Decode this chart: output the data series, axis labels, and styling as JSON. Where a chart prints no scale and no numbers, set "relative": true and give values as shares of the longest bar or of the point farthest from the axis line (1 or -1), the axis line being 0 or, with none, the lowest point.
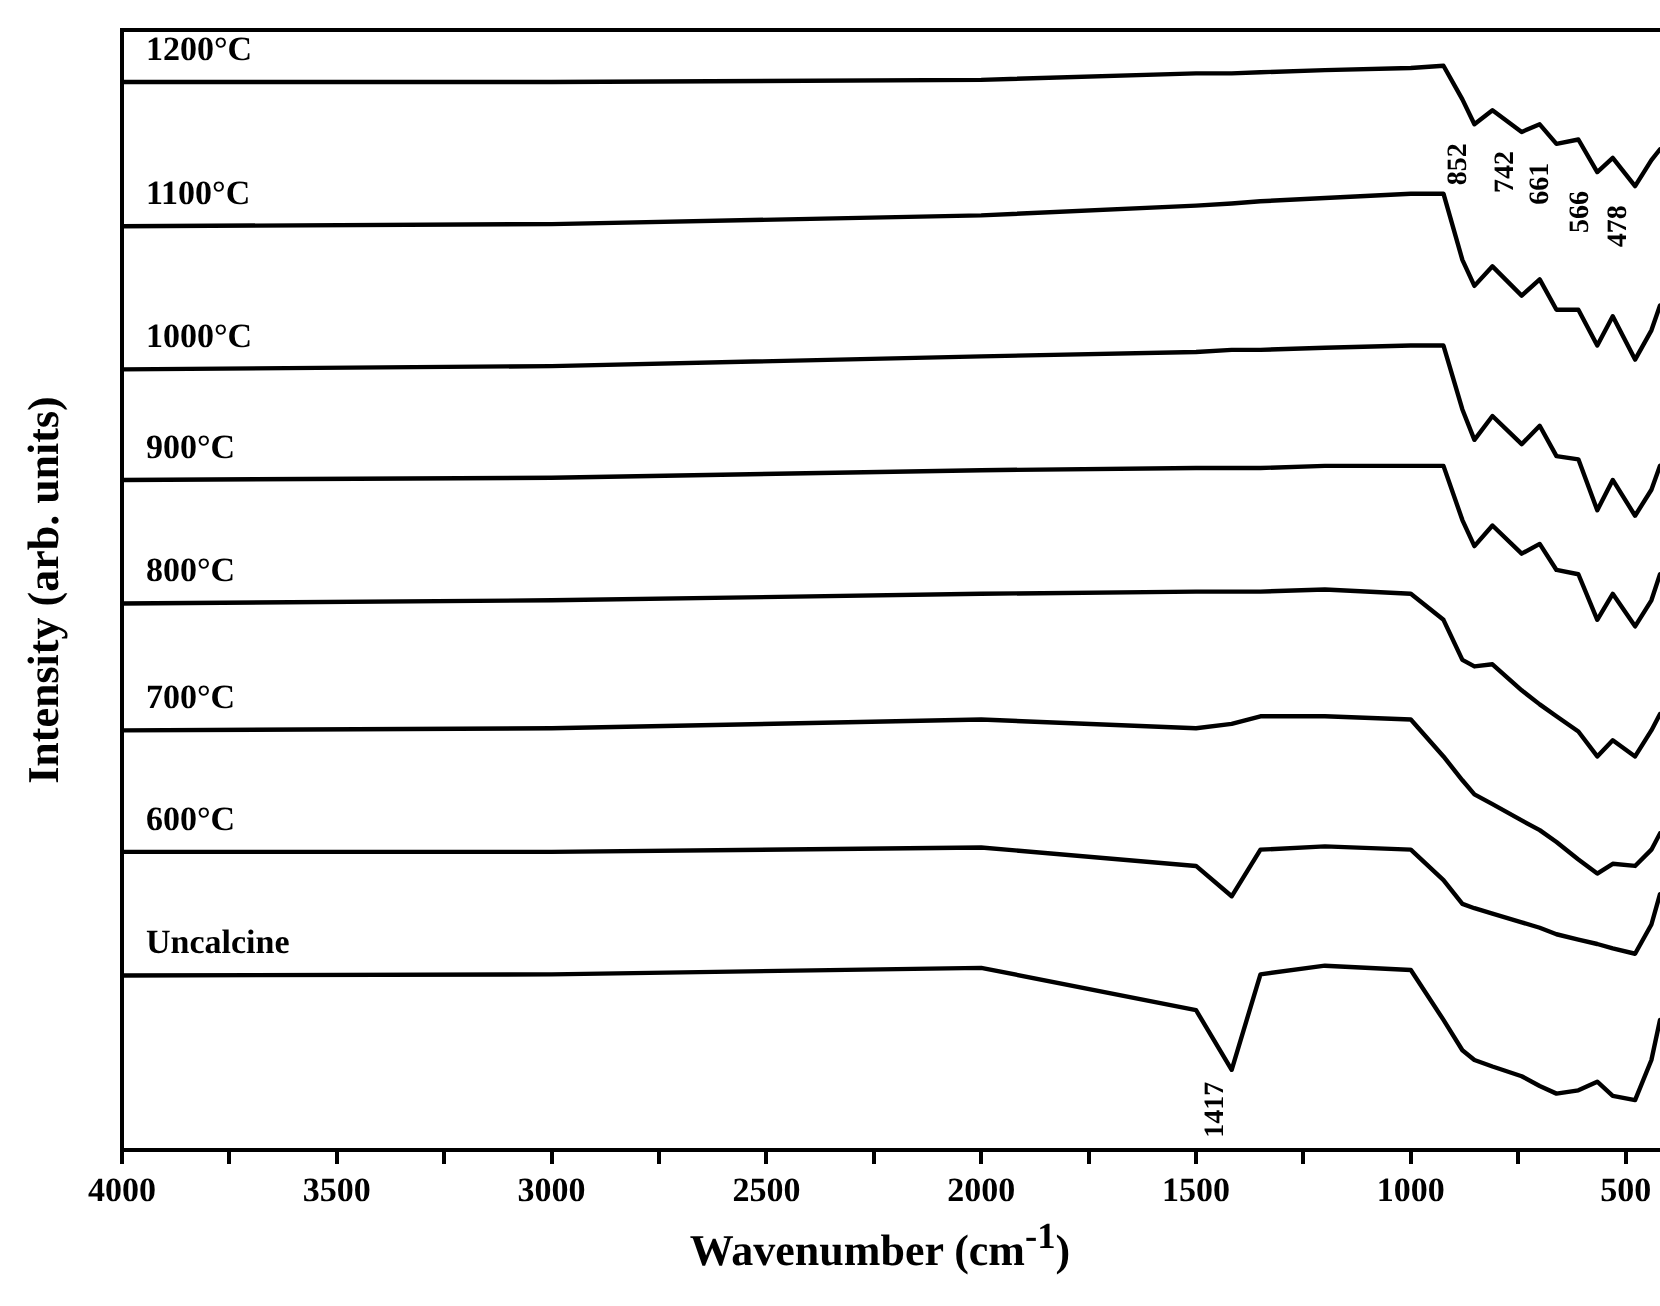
{
  "chart_data": {
    "type": "line",
    "relative": true,
    "xlabel": "Wavenumber (cm$^{-1}$)",
    "ylabel": "Intensity (arb. units)",
    "x": [
      4000,
      3000,
      2000,
      1500,
      1417,
      1350,
      1200,
      1000,
      924,
      880,
      852,
      810,
      742,
      700,
      661,
      610,
      566,
      530,
      478,
      440,
      420
    ],
    "xlim": [
      4000,
      420
    ],
    "xticks": [
      4000,
      {
        "value": 3750,
        "label": null
      },
      3500,
      {
        "value": 3250,
        "label": null
      },
      3000,
      {
        "value": 2750,
        "label": null
      },
      2500,
      {
        "value": 2250,
        "label": null
      },
      2000,
      {
        "value": 1750,
        "label": null
      },
      1500,
      {
        "value": 1250,
        "label": null
      },
      1000,
      {
        "value": 750,
        "label": null
      },
      500
    ],
    "grid": false,
    "legend": false,
    "marker": "none",
    "line_style": "solid",
    "series": [
      {
        "name": "1200°C",
        "color": "#000000",
        "values": [
          0.985,
          0.985,
          0.987,
          0.993,
          0.993,
          0.994,
          0.996,
          0.998,
          1,
          0.969,
          0.946,
          0.959,
          0.939,
          0.946,
          0.928,
          0.932,
          0.902,
          0.915,
          0.889,
          0.913,
          0.923
        ]
      },
      {
        "name": "1100°C",
        "color": "#000000",
        "values": [
          0.852,
          0.854,
          0.862,
          0.871,
          0.873,
          0.875,
          0.878,
          0.882,
          0.882,
          0.821,
          0.797,
          0.815,
          0.788,
          0.803,
          0.775,
          0.775,
          0.742,
          0.769,
          0.729,
          0.756,
          0.779
        ]
      },
      {
        "name": "1000°C",
        "color": "#000000",
        "values": [
          0.72,
          0.723,
          0.732,
          0.736,
          0.738,
          0.738,
          0.74,
          0.742,
          0.742,
          0.683,
          0.655,
          0.677,
          0.651,
          0.668,
          0.64,
          0.637,
          0.59,
          0.618,
          0.585,
          0.609,
          0.631
        ]
      },
      {
        "name": "900°C",
        "color": "#000000",
        "values": [
          0.618,
          0.62,
          0.627,
          0.629,
          0.629,
          0.629,
          0.631,
          0.631,
          0.631,
          0.581,
          0.557,
          0.576,
          0.55,
          0.559,
          0.535,
          0.531,
          0.489,
          0.513,
          0.483,
          0.507,
          0.531
        ]
      },
      {
        "name": "800°C",
        "color": "#000000",
        "values": [
          0.504,
          0.507,
          0.513,
          0.515,
          0.515,
          0.515,
          0.517,
          0.513,
          0.489,
          0.452,
          0.446,
          0.448,
          0.424,
          0.411,
          0.4,
          0.386,
          0.363,
          0.378,
          0.363,
          0.387,
          0.402
        ]
      },
      {
        "name": "700°C",
        "color": "#000000",
        "values": [
          0.387,
          0.389,
          0.397,
          0.389,
          0.393,
          0.4,
          0.4,
          0.397,
          0.363,
          0.341,
          0.328,
          0.319,
          0.304,
          0.295,
          0.284,
          0.268,
          0.255,
          0.264,
          0.262,
          0.277,
          0.292
        ]
      },
      {
        "name": "600°C",
        "color": "#000000",
        "values": [
          0.275,
          0.275,
          0.279,
          0.262,
          0.234,
          0.277,
          0.28,
          0.277,
          0.249,
          0.227,
          0.223,
          0.218,
          0.21,
          0.205,
          0.199,
          0.194,
          0.19,
          0.186,
          0.181,
          0.208,
          0.236
        ]
      },
      {
        "name": "Uncalcine",
        "color": "#000000",
        "values": [
          0.161,
          0.162,
          0.168,
          0.129,
          0.074,
          0.162,
          0.17,
          0.166,
          0.12,
          0.092,
          0.083,
          0.077,
          0.068,
          0.059,
          0.052,
          0.055,
          0.063,
          0.05,
          0.046,
          0.083,
          0.12
        ]
      }
    ],
    "annotations": [
      {
        "text": "852",
        "x": 852,
        "y": 0.946
      },
      {
        "text": "742",
        "x": 742,
        "y": 0.939
      },
      {
        "text": "661",
        "x": 661,
        "y": 0.928
      },
      {
        "text": "566",
        "x": 566,
        "y": 0.902
      },
      {
        "text": "478",
        "x": 478,
        "y": 0.889
      },
      {
        "text": "1417",
        "x": 1417,
        "y": 0.074
      }
    ]
  }
}
